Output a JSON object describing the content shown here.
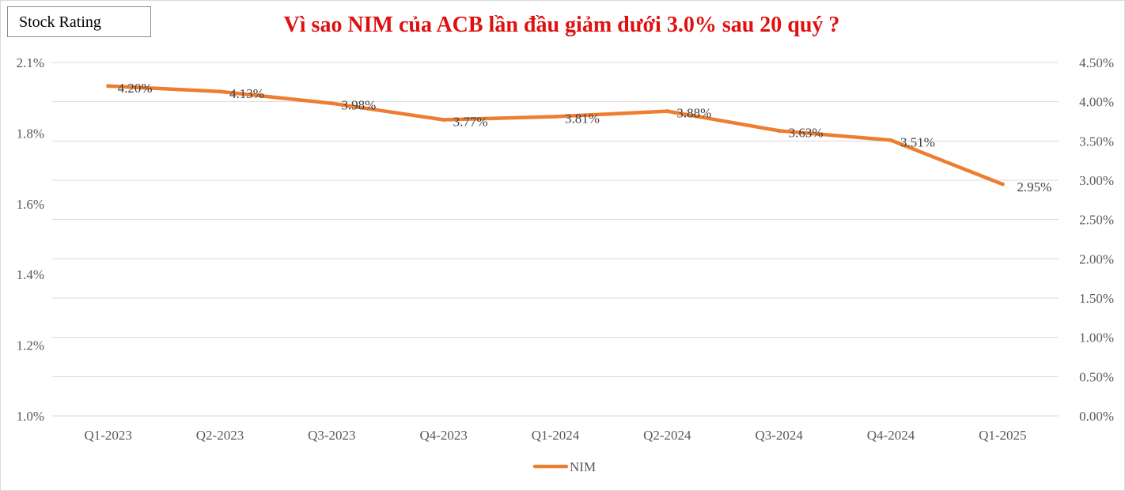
{
  "badge": {
    "label": "Stock Rating"
  },
  "chart_data": {
    "type": "line",
    "title": "Vì sao NIM của ACB lần đầu giảm dưới 3.0% sau 20 quý ?",
    "categories": [
      "Q1-2023",
      "Q2-2023",
      "Q3-2023",
      "Q4-2023",
      "Q1-2024",
      "Q2-2024",
      "Q3-2024",
      "Q4-2024",
      "Q1-2025"
    ],
    "series": [
      {
        "name": "NIM",
        "axis": "right",
        "values": [
          4.2,
          4.13,
          3.98,
          3.77,
          3.81,
          3.88,
          3.63,
          3.51,
          2.95
        ],
        "data_labels": [
          "4.20%",
          "4.13%",
          "3.98%",
          "3.77%",
          "3.81%",
          "3.88%",
          "3.63%",
          "3.51%",
          "2.95%"
        ],
        "color": "#ed7d31"
      }
    ],
    "y_left": {
      "ylim": [
        1.0,
        2.1
      ],
      "ticks": [
        1.0,
        1.2,
        1.4,
        1.6,
        1.8,
        2.1
      ],
      "tick_labels": [
        "1.0%",
        "1.2%",
        "1.4%",
        "1.6%",
        "1.8%",
        "2.1%"
      ]
    },
    "y_right": {
      "ylim": [
        0,
        4.5
      ],
      "ticks": [
        0,
        0.5,
        1.0,
        1.5,
        2.0,
        2.5,
        3.0,
        3.5,
        4.0,
        4.5
      ],
      "tick_labels": [
        "0.00%",
        "0.50%",
        "1.00%",
        "1.50%",
        "2.00%",
        "2.50%",
        "3.00%",
        "3.50%",
        "4.00%",
        "4.50%"
      ]
    },
    "grid": true,
    "legend": "bottom-center",
    "xlabel": "",
    "ylabel": ""
  }
}
